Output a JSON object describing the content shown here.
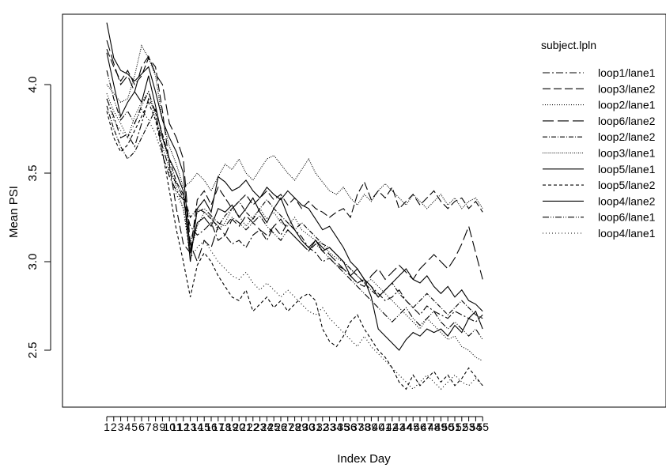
{
  "chart_data": {
    "type": "line",
    "title": "",
    "xlabel": "Index Day",
    "ylabel": "Mean PSI",
    "x": [
      1,
      2,
      3,
      4,
      5,
      6,
      7,
      8,
      9,
      10,
      11,
      12,
      13,
      14,
      15,
      16,
      17,
      18,
      19,
      20,
      21,
      22,
      23,
      24,
      25,
      26,
      27,
      28,
      29,
      30,
      31,
      32,
      33,
      34,
      35,
      36,
      37,
      38,
      39,
      40,
      41,
      42,
      43,
      44,
      45,
      46,
      47,
      48,
      49,
      50,
      51,
      52,
      53,
      54,
      55
    ],
    "x_tick_labels": [
      "1",
      "2",
      "3",
      "4",
      "5",
      "6",
      "7",
      "8",
      "9",
      "10",
      "11",
      "12",
      "13",
      "14",
      "15",
      "16",
      "17",
      "18",
      "19",
      "20",
      "21",
      "22",
      "23",
      "24",
      "25",
      "26",
      "27",
      "28",
      "29",
      "30",
      "31",
      "32",
      "33",
      "34",
      "35",
      "36",
      "37",
      "38",
      "39",
      "40",
      "41",
      "42",
      "43",
      "44",
      "45",
      "46",
      "47",
      "48",
      "49",
      "50",
      "51",
      "52",
      "53",
      "54",
      "55"
    ],
    "y_ticks": [
      2.5,
      3.0,
      3.5,
      4.0
    ],
    "y_tick_labels": [
      "2.5",
      "3.0",
      "3.5",
      "4.0"
    ],
    "ylim": [
      2.15,
      4.4
    ],
    "legend_title": "subject.lpln",
    "legend_position": "right",
    "grid": false,
    "series": [
      {
        "name": "loop1/lane1",
        "dash": "9,3,2,3",
        "values": [
          3.92,
          3.82,
          3.7,
          3.72,
          3.65,
          3.78,
          3.92,
          3.85,
          3.6,
          3.48,
          3.4,
          3.35,
          3.2,
          3.15,
          3.18,
          3.22,
          3.12,
          3.15,
          3.1,
          3.12,
          3.08,
          3.15,
          3.18,
          3.12,
          3.2,
          3.15,
          3.22,
          3.18,
          3.14,
          3.08,
          3.05,
          3.0,
          3.02,
          2.98,
          2.96,
          2.92,
          2.88,
          2.9,
          2.86,
          2.82,
          2.78,
          2.8,
          2.84,
          2.78,
          2.74,
          2.7,
          2.75,
          2.72,
          2.7,
          2.68,
          2.72,
          2.7,
          2.68,
          2.66,
          2.7
        ]
      },
      {
        "name": "loop3/lane2",
        "dash": "10,4",
        "values": [
          4.2,
          4.1,
          4.02,
          4.08,
          4.0,
          4.05,
          4.15,
          4.1,
          3.85,
          3.55,
          3.3,
          3.1,
          3.05,
          3.35,
          3.4,
          3.32,
          3.42,
          3.36,
          3.3,
          3.34,
          3.38,
          3.32,
          3.36,
          3.4,
          3.35,
          3.38,
          3.32,
          3.36,
          3.3,
          3.34,
          3.3,
          3.28,
          3.25,
          3.28,
          3.3,
          3.25,
          3.38,
          3.45,
          3.35,
          3.4,
          3.36,
          3.42,
          3.3,
          3.34,
          3.38,
          3.32,
          3.36,
          3.4,
          3.34,
          3.3,
          3.34,
          3.36,
          3.3,
          3.34,
          3.28
        ]
      },
      {
        "name": "loop2/lane1",
        "dash": "1,2",
        "values": [
          3.95,
          3.85,
          3.78,
          3.7,
          3.82,
          3.9,
          3.96,
          3.8,
          3.7,
          3.55,
          3.42,
          3.3,
          3.05,
          3.2,
          3.28,
          3.25,
          3.18,
          3.22,
          3.3,
          3.26,
          3.2,
          3.25,
          3.3,
          3.24,
          3.28,
          3.22,
          3.2,
          3.25,
          3.18,
          3.15,
          3.12,
          3.1,
          3.05,
          3.02,
          3.0,
          2.96,
          2.92,
          2.88,
          2.9,
          2.86,
          2.82,
          2.78,
          2.74,
          2.7,
          2.66,
          2.62,
          2.68,
          2.64,
          2.6,
          2.56,
          2.58,
          2.52,
          2.5,
          2.46,
          2.44
        ]
      },
      {
        "name": "loop6/lane2",
        "dash": "14,5",
        "values": [
          4.25,
          4.12,
          4.0,
          4.05,
          3.96,
          4.1,
          4.16,
          4.06,
          4.0,
          3.78,
          3.7,
          3.58,
          3.1,
          3.0,
          3.12,
          3.08,
          3.2,
          3.15,
          3.24,
          3.2,
          3.26,
          3.22,
          3.18,
          3.15,
          3.2,
          3.24,
          3.18,
          3.14,
          3.1,
          3.06,
          3.12,
          3.08,
          3.04,
          3.0,
          2.96,
          2.92,
          2.88,
          2.86,
          2.92,
          2.96,
          2.9,
          2.94,
          2.98,
          2.94,
          2.9,
          2.96,
          3.0,
          3.04,
          3.0,
          2.96,
          3.02,
          3.1,
          3.2,
          3.05,
          2.9
        ]
      },
      {
        "name": "loop2/lane2",
        "dash": "6,2,1,2",
        "values": [
          3.88,
          3.75,
          3.65,
          3.58,
          3.62,
          3.7,
          3.78,
          3.86,
          3.72,
          3.58,
          3.45,
          3.38,
          3.25,
          3.3,
          3.28,
          3.24,
          3.2,
          3.26,
          3.3,
          3.34,
          3.28,
          3.24,
          3.3,
          3.35,
          3.3,
          3.26,
          3.22,
          3.18,
          3.22,
          3.18,
          3.14,
          3.1,
          3.08,
          3.04,
          3.0,
          2.96,
          2.92,
          2.88,
          2.84,
          2.8,
          2.84,
          2.88,
          2.82,
          2.78,
          2.74,
          2.78,
          2.82,
          2.78,
          2.74,
          2.7,
          2.74,
          2.78,
          2.74,
          2.7,
          2.68
        ]
      },
      {
        "name": "loop3/lane1",
        "dash": "1,1.5",
        "values": [
          4.0,
          3.95,
          3.9,
          3.92,
          4.05,
          4.22,
          4.15,
          4.05,
          3.8,
          3.65,
          3.55,
          3.42,
          3.45,
          3.5,
          3.46,
          3.4,
          3.48,
          3.55,
          3.52,
          3.58,
          3.5,
          3.46,
          3.52,
          3.58,
          3.6,
          3.55,
          3.5,
          3.46,
          3.52,
          3.58,
          3.5,
          3.45,
          3.4,
          3.38,
          3.42,
          3.36,
          3.32,
          3.38,
          3.34,
          3.4,
          3.44,
          3.4,
          3.36,
          3.32,
          3.38,
          3.34,
          3.3,
          3.34,
          3.38,
          3.32,
          3.36,
          3.3,
          3.34,
          3.36,
          3.3
        ]
      },
      {
        "name": "loop5/lane1",
        "dash": "",
        "values": [
          4.35,
          4.15,
          4.08,
          4.06,
          4.02,
          4.06,
          4.1,
          3.96,
          3.8,
          3.7,
          3.62,
          3.5,
          3.05,
          3.22,
          3.25,
          3.2,
          3.3,
          3.28,
          3.32,
          3.25,
          3.3,
          3.36,
          3.28,
          3.22,
          3.3,
          3.36,
          3.26,
          3.18,
          3.12,
          3.08,
          3.12,
          3.06,
          3.08,
          3.04,
          3.0,
          2.92,
          2.96,
          2.9,
          2.8,
          2.62,
          2.58,
          2.54,
          2.5,
          2.56,
          2.6,
          2.58,
          2.62,
          2.6,
          2.62,
          2.58,
          2.64,
          2.6,
          2.68,
          2.72,
          2.62
        ]
      },
      {
        "name": "loop5/lane2",
        "dash": "4,3",
        "values": [
          3.85,
          3.7,
          3.62,
          3.66,
          3.74,
          3.82,
          3.9,
          3.8,
          3.62,
          3.4,
          3.18,
          3.0,
          2.8,
          2.98,
          3.05,
          3.0,
          2.92,
          2.86,
          2.8,
          2.78,
          2.84,
          2.72,
          2.76,
          2.8,
          2.74,
          2.78,
          2.72,
          2.76,
          2.8,
          2.82,
          2.78,
          2.62,
          2.55,
          2.52,
          2.58,
          2.66,
          2.7,
          2.62,
          2.56,
          2.5,
          2.46,
          2.4,
          2.32,
          2.28,
          2.36,
          2.3,
          2.34,
          2.38,
          2.32,
          2.36,
          2.3,
          2.34,
          2.4,
          2.35,
          2.3
        ]
      },
      {
        "name": "loop4/lane2",
        "dash": "",
        "values": [
          4.18,
          4.0,
          3.82,
          3.9,
          3.96,
          3.9,
          4.05,
          3.88,
          3.7,
          3.58,
          3.5,
          3.4,
          3.0,
          3.3,
          3.35,
          3.28,
          3.48,
          3.45,
          3.4,
          3.42,
          3.46,
          3.4,
          3.36,
          3.42,
          3.38,
          3.35,
          3.4,
          3.36,
          3.32,
          3.3,
          3.24,
          3.18,
          3.2,
          3.14,
          3.08,
          3.0,
          2.96,
          2.9,
          2.86,
          2.8,
          2.84,
          2.88,
          2.92,
          2.96,
          2.9,
          2.88,
          2.92,
          2.86,
          2.82,
          2.86,
          2.8,
          2.84,
          2.78,
          2.76,
          2.72
        ]
      },
      {
        "name": "loop6/lane1",
        "dash": "8,2,1,2,1,2",
        "values": [
          4.08,
          3.92,
          3.8,
          3.85,
          3.78,
          3.88,
          3.96,
          3.84,
          3.65,
          3.52,
          3.44,
          3.36,
          3.1,
          3.28,
          3.3,
          3.26,
          3.22,
          3.2,
          3.25,
          3.22,
          3.18,
          3.22,
          3.26,
          3.2,
          3.16,
          3.12,
          3.18,
          3.14,
          3.1,
          3.06,
          3.1,
          3.06,
          3.02,
          2.98,
          2.94,
          2.9,
          2.86,
          2.82,
          2.78,
          2.74,
          2.7,
          2.66,
          2.7,
          2.74,
          2.68,
          2.64,
          2.68,
          2.72,
          2.66,
          2.62,
          2.66,
          2.62,
          2.58,
          2.62,
          2.56
        ]
      },
      {
        "name": "loop4/lane1",
        "dash": "1,3",
        "values": [
          3.92,
          3.8,
          3.74,
          3.7,
          3.78,
          3.86,
          3.8,
          3.72,
          3.6,
          3.5,
          3.38,
          3.3,
          3.02,
          3.08,
          3.12,
          3.06,
          3.0,
          2.96,
          2.92,
          2.9,
          2.94,
          2.88,
          2.84,
          2.88,
          2.84,
          2.8,
          2.84,
          2.8,
          2.76,
          2.72,
          2.7,
          2.74,
          2.68,
          2.64,
          2.6,
          2.56,
          2.52,
          2.58,
          2.52,
          2.48,
          2.44,
          2.4,
          2.36,
          2.32,
          2.28,
          2.32,
          2.36,
          2.32,
          2.28,
          2.32,
          2.36,
          2.32,
          2.3,
          2.34,
          2.3
        ]
      }
    ]
  }
}
